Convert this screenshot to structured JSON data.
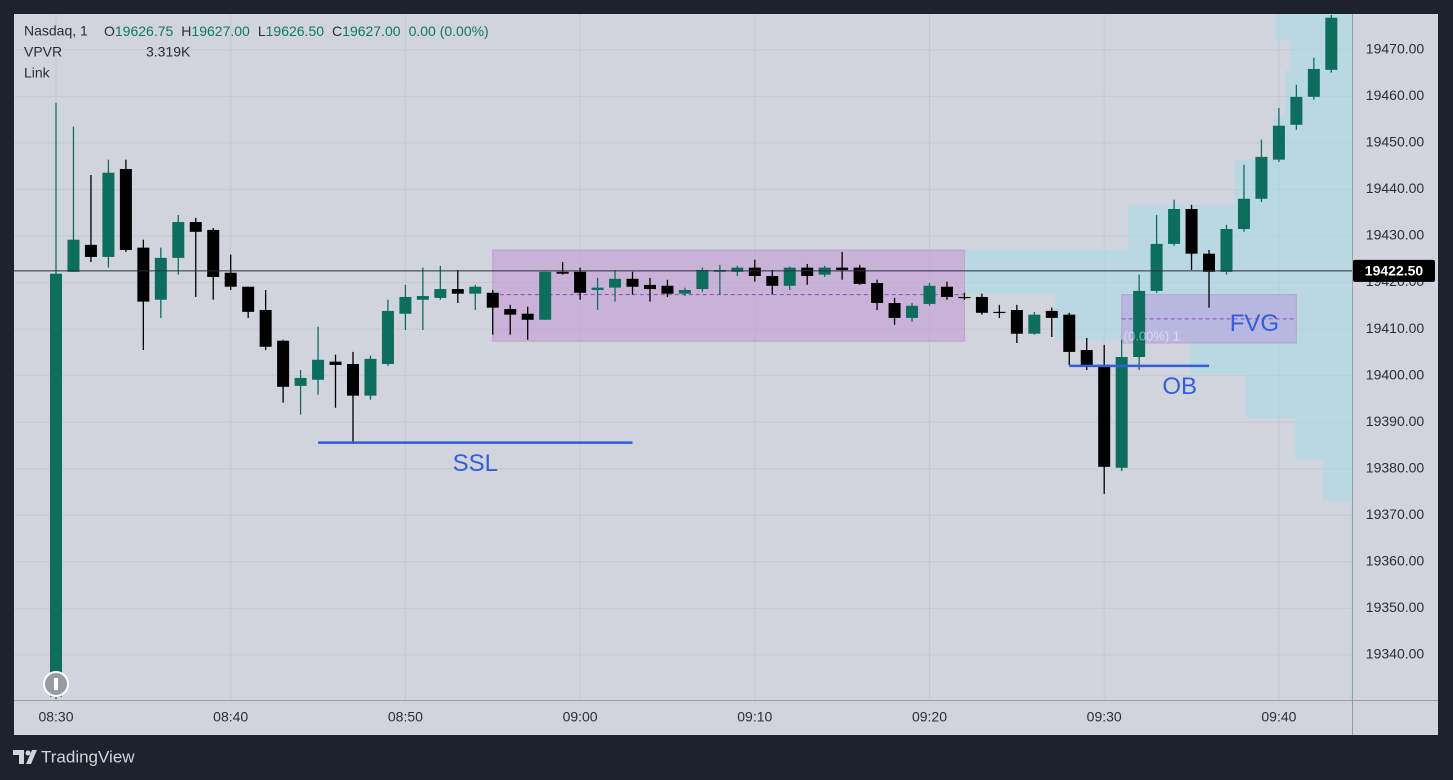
{
  "chart_data": {
    "type": "candlestick",
    "header": {
      "symbol": "Nasdaq, 1",
      "ohlc": [
        {
          "label": "O",
          "value": "19626.75"
        },
        {
          "label": "H",
          "value": "19627.00"
        },
        {
          "label": "L",
          "value": "19626.50"
        },
        {
          "label": "C",
          "value": "19627.00"
        }
      ],
      "change": "0.00 (0.00%)",
      "indicator": "VPVR",
      "indicator_value": "3.319K",
      "link": "Link"
    },
    "categories": [
      "08:30",
      null,
      null,
      null,
      null,
      null,
      null,
      null,
      null,
      null,
      "08:40",
      null,
      null,
      null,
      null,
      null,
      null,
      null,
      null,
      null,
      "08:50",
      null,
      null,
      null,
      null,
      null,
      null,
      null,
      null,
      null,
      "09:00",
      null,
      null,
      null,
      null,
      null,
      null,
      null,
      null,
      null,
      "09:10",
      null,
      null,
      null,
      null,
      null,
      null,
      null,
      null,
      null,
      "09:20",
      null,
      null,
      null,
      null,
      null,
      null,
      null,
      null,
      null,
      "09:30",
      null,
      null,
      null,
      null,
      null,
      null,
      null,
      null,
      null,
      "09:40",
      null,
      null,
      null
    ],
    "open": [
      19331,
      19422.3,
      19428.1,
      19425.5,
      19444.4,
      19427.5,
      19416.3,
      19425.3,
      19433.0,
      19431.3,
      19422.1,
      19419.1,
      19414.1,
      19407.5,
      19397.8,
      19399.1,
      19403.0,
      19402.5,
      19395.7,
      19402.5,
      19413.3,
      19416.3,
      19416.7,
      19418.6,
      19417.6,
      19417.8,
      19414.3,
      19413.3,
      19412.0,
      19422.3,
      19422.3,
      19418.4,
      19418.9,
      19420.8,
      19419.5,
      19419.3,
      19417.6,
      19418.6,
      19422.3,
      19422.3,
      19423.2,
      19421.4,
      19419.3,
      19423.2,
      19421.7,
      19423.2,
      19423.2,
      19419.9,
      19415.6,
      19412.4,
      19415.4,
      19419.1,
      19416.9,
      19416.9,
      19413.7,
      19414.1,
      19409.0,
      19413.9,
      19413.1,
      19405.5,
      19402.3,
      19380.2,
      19404.0,
      19418.2,
      19428.3,
      19435.8,
      19426.2,
      19422.3,
      19431.5,
      19438.0,
      19446.4,
      19453.9,
      19459.9,
      19465.7
    ],
    "high": [
      19458.6,
      19453.5,
      19443.1,
      19446.4,
      19446.4,
      19429.2,
      19427.5,
      19434.5,
      19433.9,
      19431.7,
      19426.0,
      19419.1,
      19418.4,
      19407.7,
      19401.2,
      19410.5,
      19404.5,
      19405.1,
      19404.3,
      19416.3,
      19419.5,
      19423.2,
      19423.6,
      19422.7,
      19419.5,
      19418.4,
      19415.2,
      19414.8,
      19422.3,
      19424.4,
      19423.2,
      19421.0,
      19422.7,
      19422.3,
      19421.0,
      19420.6,
      19418.9,
      19423.2,
      19423.8,
      19423.6,
      19424.9,
      19422.7,
      19423.4,
      19424.0,
      19423.6,
      19426.6,
      19423.8,
      19420.6,
      19416.7,
      19415.6,
      19419.9,
      19420.2,
      19417.8,
      19417.6,
      19415.2,
      19415.2,
      19413.7,
      19414.6,
      19413.5,
      19408.1,
      19406.6,
      19407.7,
      19421.7,
      19434.5,
      19437.8,
      19436.7,
      19427.0,
      19432.4,
      19445.3,
      19450.7,
      19457.5,
      19462.5,
      19468.3,
      19477.5
    ],
    "low": [
      19330.5,
      19422.3,
      19424.4,
      19423.2,
      19426.6,
      19405.5,
      19412.4,
      19421.7,
      19416.9,
      19416.3,
      19418.4,
      19412.4,
      19405.5,
      19394.2,
      19391.6,
      19395.9,
      19393.1,
      19385.3,
      19394.8,
      19402.1,
      19409.8,
      19409.8,
      19416.3,
      19415.6,
      19414.1,
      19408.8,
      19408.8,
      19407.7,
      19412.0,
      19421.7,
      19416.3,
      19414.1,
      19415.9,
      19417.4,
      19415.9,
      19416.9,
      19417.1,
      19418.0,
      19417.4,
      19421.4,
      19420.2,
      19417.4,
      19418.4,
      19419.5,
      19421.2,
      19420.6,
      19419.5,
      19414.1,
      19410.9,
      19411.6,
      19415.0,
      19416.3,
      19416.3,
      19413.1,
      19412.4,
      19407.0,
      19408.8,
      19408.3,
      19402.3,
      19401.2,
      19374.6,
      19379.5,
      19401.2,
      19417.8,
      19427.9,
      19422.7,
      19414.6,
      19421.7,
      19430.9,
      19437.3,
      19445.9,
      19452.8,
      19459.3,
      19465.1
    ],
    "close": [
      19421.9,
      19429.2,
      19425.5,
      19443.6,
      19427.0,
      19415.9,
      19425.3,
      19433.0,
      19430.9,
      19421.2,
      19419.1,
      19413.7,
      19406.2,
      19397.6,
      19399.5,
      19403.4,
      19402.3,
      19395.7,
      19403.6,
      19413.9,
      19416.9,
      19417.1,
      19418.6,
      19417.6,
      19419.1,
      19414.6,
      19413.1,
      19412.0,
      19422.3,
      19421.9,
      19417.8,
      19418.9,
      19420.8,
      19419.1,
      19418.6,
      19417.6,
      19418.4,
      19422.7,
      19422.7,
      19423.2,
      19421.4,
      19419.3,
      19423.2,
      19421.4,
      19423.2,
      19422.7,
      19419.7,
      19415.6,
      19412.4,
      19415.0,
      19419.3,
      19416.9,
      19416.7,
      19413.5,
      19413.5,
      19409.0,
      19413.1,
      19412.4,
      19405.1,
      19401.9,
      19380.4,
      19404.0,
      19418.2,
      19428.3,
      19435.8,
      19426.2,
      19422.3,
      19431.5,
      19438.0,
      19447.0,
      19453.7,
      19459.9,
      19465.9,
      19476.9
    ],
    "up_color": "#0d6e5d",
    "down_color": "#000000",
    "ylim": [
      19330.3,
      19477.7
    ],
    "yticks": [
      {
        "value": 19340,
        "label": "19340.00"
      },
      {
        "value": 19350,
        "label": "19350.00"
      },
      {
        "value": 19360,
        "label": "19360.00"
      },
      {
        "value": 19370,
        "label": "19370.00"
      },
      {
        "value": 19380,
        "label": "19380.00"
      },
      {
        "value": 19390,
        "label": "19390.00"
      },
      {
        "value": 19400,
        "label": "19400.00"
      },
      {
        "value": 19410,
        "label": "19410.00"
      },
      {
        "value": 19420,
        "label": "19420.00"
      },
      {
        "value": 19430,
        "label": "19430.00"
      },
      {
        "value": 19440,
        "label": "19440.00"
      },
      {
        "value": 19450,
        "label": "19450.00"
      },
      {
        "value": 19460,
        "label": "19460.00"
      },
      {
        "value": 19470,
        "label": "19470.00"
      }
    ],
    "grid": true,
    "last_price": {
      "value": 19422.5,
      "label": "19422.50"
    },
    "volume_profile": {
      "bins": [
        19330.3,
        19372.9,
        19381.9,
        19390.9,
        19400.2,
        19407.7,
        19417.4,
        19427.0,
        19436.7,
        19446.4,
        19455.6,
        19465.7,
        19472.1,
        19477.7
      ],
      "values": [
        2,
        29,
        57,
        107,
        162,
        297,
        387,
        224,
        117,
        77,
        67,
        62,
        77
      ],
      "color": "#a6dbe6"
    },
    "zones": [
      {
        "x": [
          25,
          52
        ],
        "y": [
          19407.4,
          19427.0
        ],
        "mid": 19417.4,
        "color": "#c39bd3"
      },
      {
        "name": "FVG",
        "x": [
          61,
          71
        ],
        "y": [
          19407.0,
          19417.4
        ],
        "mid": 19412.2,
        "color": "#b7a2e0"
      }
    ],
    "levels": [
      {
        "name": "SSL",
        "x": [
          15,
          33
        ],
        "y": 19385.6,
        "color": "#2f5fe0"
      },
      {
        "name": "OB",
        "x": [
          58,
          66
        ],
        "y": 19402.1,
        "color": "#2f5fe0"
      }
    ],
    "faint_note": "(0.00%) 1",
    "footer": "TradingView"
  }
}
